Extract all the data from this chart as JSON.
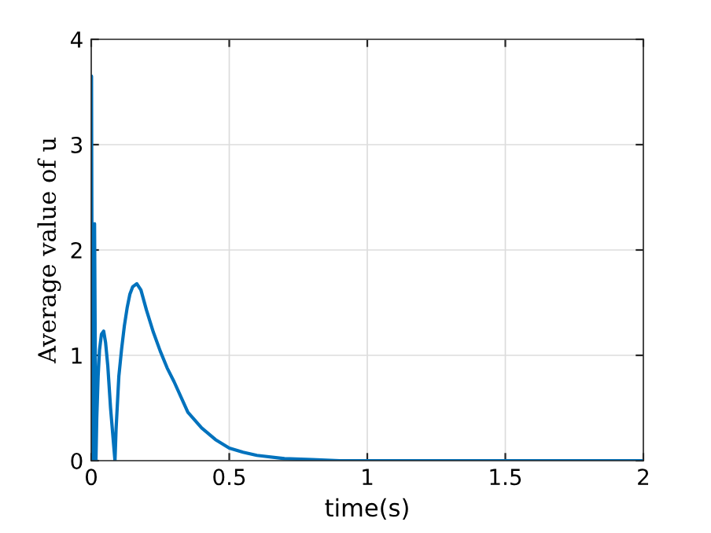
{
  "chart_data": {
    "type": "line",
    "xlabel": "time(s)",
    "ylabel": "Average value of u",
    "series": [
      {
        "color": "#0072bd",
        "x": [
          0,
          0.001,
          0.002,
          0.004,
          0.006,
          0.008,
          0.01,
          0.012,
          0.014,
          0.017,
          0.02,
          0.025,
          0.03,
          0.037,
          0.045,
          0.052,
          0.06,
          0.07,
          0.078,
          0.086,
          0.09,
          0.1,
          0.11,
          0.12,
          0.13,
          0.14,
          0.15,
          0.165,
          0.18,
          0.2,
          0.225,
          0.25,
          0.275,
          0.3,
          0.35,
          0.4,
          0.45,
          0.5,
          0.55,
          0.6,
          0.7,
          0.8,
          0.9,
          1,
          1.2,
          1.5,
          2
        ],
        "values": [
          0,
          3.65,
          2.5,
          1.0,
          0.3,
          0,
          1.5,
          2.25,
          1.3,
          0,
          0.4,
          0.8,
          1.05,
          1.2,
          1.23,
          1.12,
          0.9,
          0.5,
          0.25,
          0,
          0.3,
          0.8,
          1.06,
          1.28,
          1.45,
          1.58,
          1.65,
          1.68,
          1.62,
          1.43,
          1.22,
          1.04,
          0.88,
          0.75,
          0.46,
          0.31,
          0.2,
          0.12,
          0.08,
          0.05,
          0.02,
          0.01,
          0,
          0,
          0,
          0,
          0
        ]
      }
    ],
    "xlim": [
      0,
      2
    ],
    "ylim": [
      0,
      4
    ],
    "xticks": [
      0,
      0.5,
      1,
      1.5,
      2
    ],
    "yticks": [
      0,
      1,
      2,
      3,
      4
    ],
    "grid": true,
    "line_style": "solid",
    "marker": "none"
  }
}
